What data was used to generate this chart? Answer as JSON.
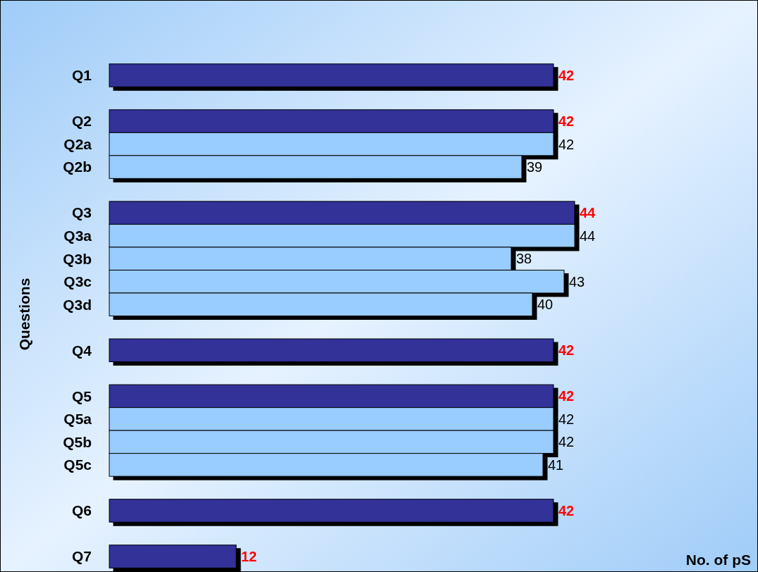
{
  "chart_data": {
    "type": "bar",
    "orientation": "horizontal",
    "ylabel": "Questions",
    "annotations": [
      "No. of pS"
    ],
    "categories": [
      "Q1",
      null,
      "Q2",
      "Q2a",
      "Q2b",
      null,
      "Q3",
      "Q3a",
      "Q3b",
      "Q3c",
      "Q3d",
      null,
      "Q4",
      null,
      "Q5",
      "Q5a",
      "Q5b",
      "Q5c",
      null,
      "Q6",
      null,
      "Q7"
    ],
    "series": [
      {
        "color": "#333399",
        "values": [
          42,
          null,
          42,
          null,
          null,
          null,
          44,
          null,
          null,
          null,
          null,
          null,
          42,
          null,
          42,
          null,
          null,
          null,
          null,
          42,
          null,
          12
        ]
      },
      {
        "color": "#99ccff",
        "values": [
          null,
          null,
          null,
          42,
          39,
          null,
          null,
          44,
          38,
          43,
          40,
          null,
          null,
          null,
          null,
          42,
          42,
          41,
          null,
          null,
          null,
          null
        ]
      }
    ],
    "data_labels": true
  }
}
